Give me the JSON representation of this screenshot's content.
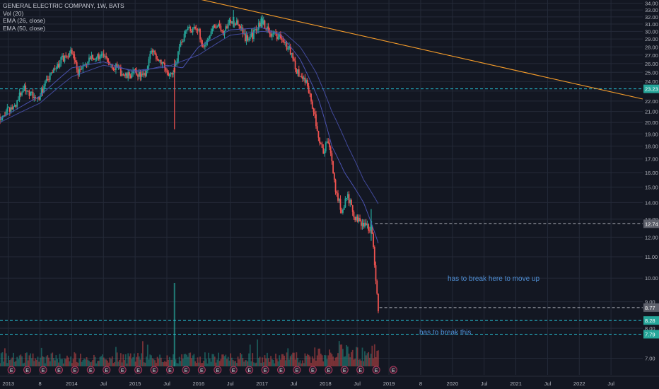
{
  "legend": {
    "title": "GENERAL ELECTRIC COMPANY, 1W, BATS",
    "vol": "Vol (20)",
    "ema26": "EMA (26, close)",
    "ema50": "EMA (50, close)"
  },
  "colors": {
    "background": "#131722",
    "grid": "#242a38",
    "up": "#26a69a",
    "down": "#ef5350",
    "trendline": "#f59c2a",
    "ema": "#4a52b0",
    "cyan_dashed": "#26c6da",
    "white_dashed": "#b2b5be",
    "annotation": "#4f8fd6"
  },
  "annotations": {
    "move_up": "has to break here to move up",
    "break_this": "has to break this"
  },
  "chart_data": {
    "type": "candlestick",
    "y_scale": "log",
    "ylim": [
      6.5,
      34.5
    ],
    "y_ticks": [
      7.0,
      8.0,
      9.0,
      10.0,
      11.0,
      12.0,
      13.0,
      14.0,
      15.0,
      16.0,
      17.0,
      18.0,
      19.0,
      20.0,
      21.0,
      22.0,
      23.0,
      24.0,
      25.0,
      26.0,
      27.0,
      28.0,
      29.0,
      30.0,
      31.0,
      32.0,
      33.0,
      34.0
    ],
    "x_ticks": [
      {
        "label": "2013",
        "t": 2013.0
      },
      {
        "label": "8",
        "t": 2013.5
      },
      {
        "label": "2014",
        "t": 2014.0
      },
      {
        "label": "Jul",
        "t": 2014.5
      },
      {
        "label": "2015",
        "t": 2015.0
      },
      {
        "label": "Jul",
        "t": 2015.5
      },
      {
        "label": "2016",
        "t": 2016.0
      },
      {
        "label": "Jul",
        "t": 2016.5
      },
      {
        "label": "2017",
        "t": 2017.0
      },
      {
        "label": "Jul",
        "t": 2017.5
      },
      {
        "label": "2018",
        "t": 2018.0
      },
      {
        "label": "Jul",
        "t": 2018.5
      },
      {
        "label": "2019",
        "t": 2019.0
      },
      {
        "label": "8",
        "t": 2019.5
      },
      {
        "label": "2020",
        "t": 2020.0
      },
      {
        "label": "Jul",
        "t": 2020.5
      },
      {
        "label": "2021",
        "t": 2021.0
      },
      {
        "label": "Jul",
        "t": 2021.5
      },
      {
        "label": "2022",
        "t": 2022.0
      },
      {
        "label": "Jul",
        "t": 2022.5
      }
    ],
    "xlim": [
      2012.87,
      2023.0
    ],
    "price_keypoints": [
      {
        "t": 2012.87,
        "v": 20.5
      },
      {
        "t": 2013.1,
        "v": 21.5
      },
      {
        "t": 2013.25,
        "v": 23.5
      },
      {
        "t": 2013.45,
        "v": 22.0
      },
      {
        "t": 2013.6,
        "v": 24.0
      },
      {
        "t": 2013.85,
        "v": 26.5
      },
      {
        "t": 2014.0,
        "v": 27.5
      },
      {
        "t": 2014.1,
        "v": 25.0
      },
      {
        "t": 2014.3,
        "v": 26.5
      },
      {
        "t": 2014.45,
        "v": 27.0
      },
      {
        "t": 2014.7,
        "v": 25.5
      },
      {
        "t": 2014.85,
        "v": 24.5
      },
      {
        "t": 2015.0,
        "v": 25.0
      },
      {
        "t": 2015.15,
        "v": 24.5
      },
      {
        "t": 2015.25,
        "v": 27.5
      },
      {
        "t": 2015.45,
        "v": 26.0
      },
      {
        "t": 2015.55,
        "v": 24.5
      },
      {
        "t": 2015.62,
        "v": 25.5
      },
      {
        "t": 2015.8,
        "v": 30.5
      },
      {
        "t": 2016.0,
        "v": 30.0
      },
      {
        "t": 2016.08,
        "v": 28.0
      },
      {
        "t": 2016.25,
        "v": 31.0
      },
      {
        "t": 2016.4,
        "v": 30.0
      },
      {
        "t": 2016.5,
        "v": 31.5
      },
      {
        "t": 2016.62,
        "v": 31.0
      },
      {
        "t": 2016.75,
        "v": 29.0
      },
      {
        "t": 2016.85,
        "v": 29.5
      },
      {
        "t": 2017.0,
        "v": 31.5
      },
      {
        "t": 2017.1,
        "v": 30.0
      },
      {
        "t": 2017.3,
        "v": 29.0
      },
      {
        "t": 2017.45,
        "v": 27.5
      },
      {
        "t": 2017.55,
        "v": 25.0
      },
      {
        "t": 2017.7,
        "v": 24.0
      },
      {
        "t": 2017.85,
        "v": 20.0
      },
      {
        "t": 2017.95,
        "v": 17.5
      },
      {
        "t": 2018.05,
        "v": 18.5
      },
      {
        "t": 2018.15,
        "v": 15.0
      },
      {
        "t": 2018.25,
        "v": 13.5
      },
      {
        "t": 2018.35,
        "v": 14.5
      },
      {
        "t": 2018.45,
        "v": 13.0
      },
      {
        "t": 2018.55,
        "v": 12.8
      },
      {
        "t": 2018.72,
        "v": 12.5
      },
      {
        "t": 2018.78,
        "v": 10.5
      },
      {
        "t": 2018.85,
        "v": 7.8
      }
    ],
    "highlighted_candles": [
      {
        "t": 2015.62,
        "open": 25.5,
        "high": 26.5,
        "low": 19.4,
        "close": 25.0
      },
      {
        "t": 2016.55,
        "open": 31.5,
        "high": 33.0,
        "low": 30.5,
        "close": 32.0
      },
      {
        "t": 2017.0,
        "open": 31.0,
        "high": 32.3,
        "low": 30.5,
        "close": 31.8
      },
      {
        "t": 2018.72,
        "open": 12.4,
        "high": 13.6,
        "low": 11.8,
        "close": 12.9
      }
    ],
    "volume_spike": {
      "t": 2015.62,
      "relative_height": 1.0
    },
    "ema26_keypoints": [
      {
        "t": 2012.87,
        "v": 20.3
      },
      {
        "t": 2013.5,
        "v": 22.5
      },
      {
        "t": 2014.0,
        "v": 25.5
      },
      {
        "t": 2014.5,
        "v": 26.2
      },
      {
        "t": 2015.0,
        "v": 25.0
      },
      {
        "t": 2015.5,
        "v": 25.8
      },
      {
        "t": 2015.75,
        "v": 25.5
      },
      {
        "t": 2016.0,
        "v": 28.0
      },
      {
        "t": 2016.5,
        "v": 30.2
      },
      {
        "t": 2017.0,
        "v": 30.5
      },
      {
        "t": 2017.3,
        "v": 29.5
      },
      {
        "t": 2017.6,
        "v": 26.5
      },
      {
        "t": 2017.9,
        "v": 22.0
      },
      {
        "t": 2018.1,
        "v": 18.0
      },
      {
        "t": 2018.3,
        "v": 16.0
      },
      {
        "t": 2018.6,
        "v": 14.0
      },
      {
        "t": 2018.85,
        "v": 11.5
      }
    ],
    "ema50_keypoints": [
      {
        "t": 2012.87,
        "v": 20.0
      },
      {
        "t": 2013.5,
        "v": 21.8
      },
      {
        "t": 2014.0,
        "v": 24.5
      },
      {
        "t": 2014.5,
        "v": 25.8
      },
      {
        "t": 2015.0,
        "v": 25.2
      },
      {
        "t": 2015.5,
        "v": 25.6
      },
      {
        "t": 2016.0,
        "v": 27.0
      },
      {
        "t": 2016.5,
        "v": 29.5
      },
      {
        "t": 2017.0,
        "v": 30.0
      },
      {
        "t": 2017.35,
        "v": 29.8
      },
      {
        "t": 2017.6,
        "v": 28.0
      },
      {
        "t": 2017.85,
        "v": 25.0
      },
      {
        "t": 2018.1,
        "v": 21.0
      },
      {
        "t": 2018.35,
        "v": 18.0
      },
      {
        "t": 2018.6,
        "v": 15.5
      },
      {
        "t": 2018.85,
        "v": 13.8
      }
    ],
    "trendline": {
      "t1": 2015.4,
      "v1": 36.0,
      "t2": 2023.0,
      "v2": 22.2
    },
    "levels": [
      {
        "label": "23.23",
        "value": 23.23,
        "style": "cyan",
        "x_start": 2012.87
      },
      {
        "label": "12.74",
        "value": 12.74,
        "style": "white",
        "x_start": 2018.78
      },
      {
        "label": "8.77",
        "value": 8.77,
        "style": "white",
        "x_start": 2018.85
      },
      {
        "label": "8.28",
        "value": 8.28,
        "style": "cyan",
        "x_start": 2012.87
      },
      {
        "label": "7.79",
        "value": 7.79,
        "style": "cyan",
        "x_start": 2012.87
      }
    ],
    "earnings_markers": {
      "label": "E",
      "t": [
        2013.05,
        2013.3,
        2013.55,
        2013.8,
        2014.05,
        2014.3,
        2014.55,
        2014.8,
        2015.05,
        2015.3,
        2015.55,
        2015.8,
        2016.05,
        2016.3,
        2016.55,
        2016.8,
        2017.05,
        2017.3,
        2017.55,
        2017.8,
        2018.05,
        2018.3,
        2018.55,
        2018.8,
        2019.07
      ]
    }
  }
}
